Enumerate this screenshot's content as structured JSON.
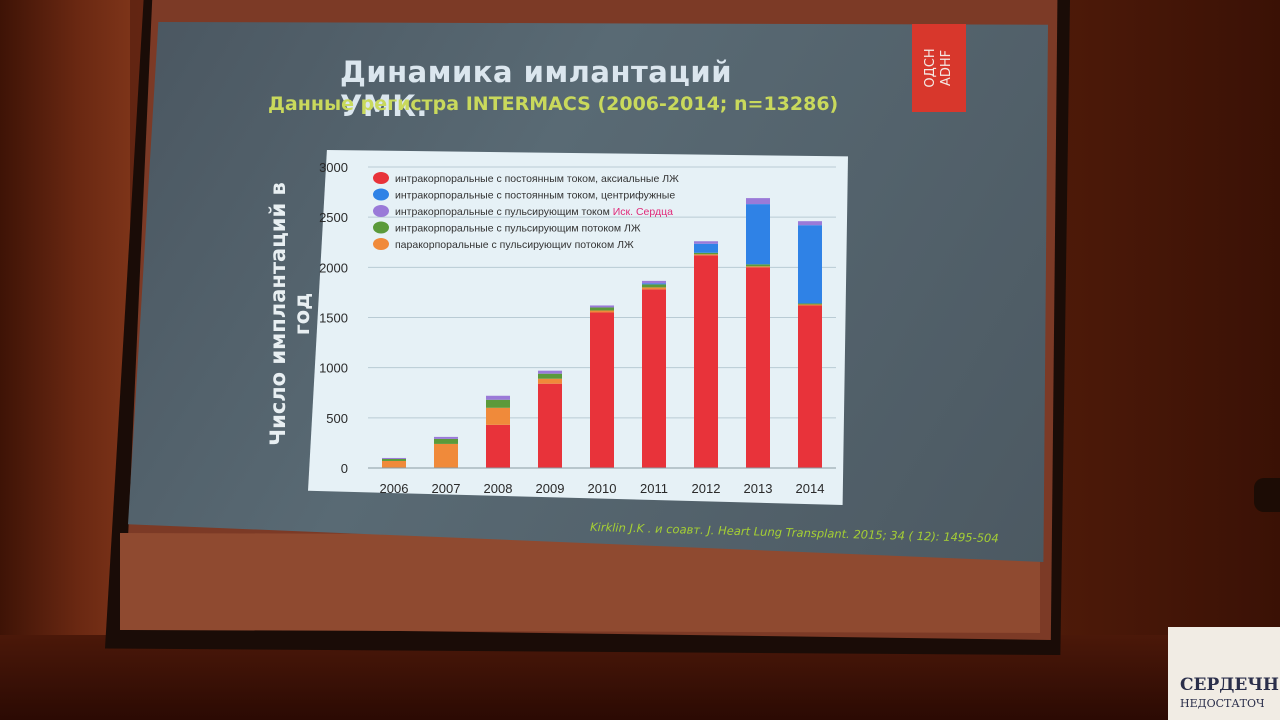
{
  "slide": {
    "title": "Динамика имлантаций УМК.",
    "subtitle": "Данные регистра INTERMACS (2006-2014;  n=13286)",
    "badge": [
      "ОДСН",
      "ADHF"
    ],
    "ylabel": "Число имплантаций в год",
    "citation": "Kirklin J.K . и соавт. J. Heart Lung Transplant. 2015; 34 ( 12): 1495-504"
  },
  "sign": {
    "line1": "СЕРДЕЧН",
    "line2": "НЕДОСТАТОЧ"
  },
  "colors": {
    "axial": "#e8333a",
    "centrifugal": "#2f82e6",
    "pulsatile_heart": "#9a7ad8",
    "pulsatile_lv": "#5b9a3a",
    "paracorporeal": "#f08a3a",
    "legend_highlight": "#e02a7a"
  },
  "chart_data": {
    "type": "bar",
    "stacked": true,
    "categories": [
      "2006",
      "2007",
      "2008",
      "2009",
      "2010",
      "2011",
      "2012",
      "2013",
      "2014"
    ],
    "series": [
      {
        "name": "интракорпоральные с постоянным током, аксиальные ЛЖ",
        "values": [
          0,
          0,
          430,
          840,
          1550,
          1780,
          2120,
          2000,
          1620
        ]
      },
      {
        "name": "интракорпоральные с постоянным током, центрифужные",
        "values": [
          0,
          0,
          0,
          0,
          0,
          10,
          90,
          600,
          780
        ]
      },
      {
        "name": "интракорпоральные с пульсирующим током Иск. Сердца",
        "legend_prefix": "интракорпоральные с пульсирующим током ",
        "legend_highlight": "Иск. Сердца",
        "values": [
          10,
          20,
          40,
          30,
          20,
          25,
          25,
          60,
          40
        ]
      },
      {
        "name": "интракорпоральные с пульсирующим потоком ЛЖ",
        "values": [
          20,
          50,
          80,
          50,
          30,
          30,
          15,
          20,
          10
        ]
      },
      {
        "name": "паракорпоральные с пульсирующиv потоком ЛЖ",
        "values": [
          70,
          240,
          170,
          50,
          20,
          20,
          10,
          10,
          10
        ]
      }
    ],
    "yticks": [
      "0",
      "500",
      "1000",
      "1500",
      "2000",
      "2500",
      "3000"
    ],
    "ylim": [
      0,
      3000
    ],
    "grid": true,
    "legend_position": "top-left"
  }
}
